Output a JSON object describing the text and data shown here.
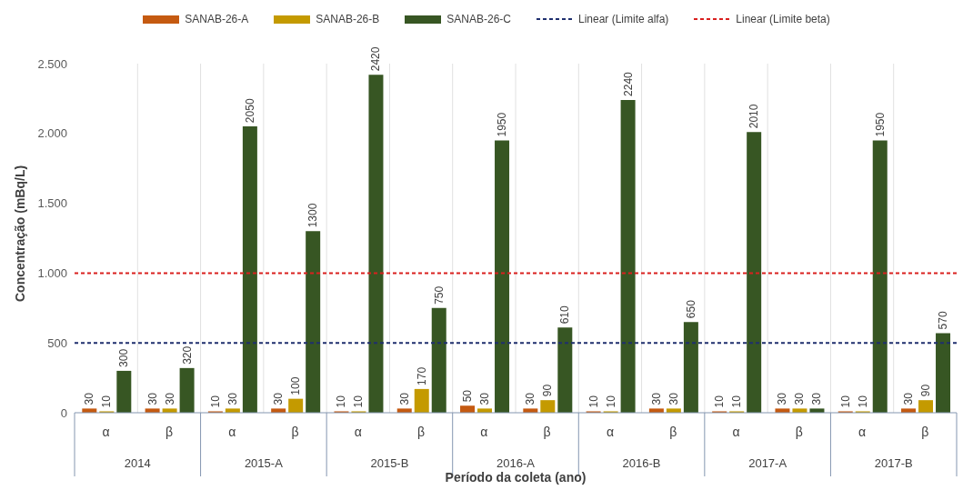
{
  "chart_data": {
    "type": "bar",
    "xlabel": "Período da coleta (ano)",
    "ylabel": "Concentração (mBq/L)",
    "categories": [
      "α",
      "β",
      "α",
      "β",
      "α",
      "β",
      "α",
      "β",
      "α",
      "β",
      "α",
      "β",
      "α",
      "β"
    ],
    "annotations": [
      "2014",
      "2015-A",
      "2015-B",
      "2016-A",
      "2016-B",
      "2017-A",
      "2017-B"
    ],
    "series": [
      {
        "name": "SANAB-26-A",
        "color": "#c55a11",
        "values": [
          30,
          30,
          10,
          30,
          10,
          30,
          50,
          30,
          10,
          30,
          10,
          30,
          10,
          30
        ]
      },
      {
        "name": "SANAB-26-B",
        "color": "#c49a00",
        "values": [
          10,
          30,
          30,
          100,
          10,
          170,
          30,
          90,
          10,
          30,
          10,
          30,
          10,
          90
        ]
      },
      {
        "name": "SANAB-26-C",
        "color": "#375623",
        "values": [
          300,
          320,
          2050,
          1300,
          2420,
          750,
          1950,
          610,
          2240,
          650,
          2010,
          30,
          1950,
          570
        ]
      }
    ],
    "ylim": [
      0,
      2500
    ],
    "yticks": [
      0,
      500,
      {
        "value": 1000,
        "label": "1.000"
      },
      {
        "value": 1500,
        "label": "1.500"
      },
      {
        "value": 2000,
        "label": "2.000"
      },
      {
        "value": 2500,
        "label": "2.500"
      }
    ],
    "ref_lines": [
      {
        "axis": "y",
        "value": 500,
        "label": "Linear (Limite alfa)",
        "color": "#1f2f6e",
        "line_style": "dashed"
      },
      {
        "axis": "y",
        "value": 1000,
        "label": "Linear (Limite beta)",
        "color": "#d9201f",
        "line_style": "dashed"
      }
    ],
    "data_labels": true,
    "grid": "x",
    "legend": "top"
  }
}
